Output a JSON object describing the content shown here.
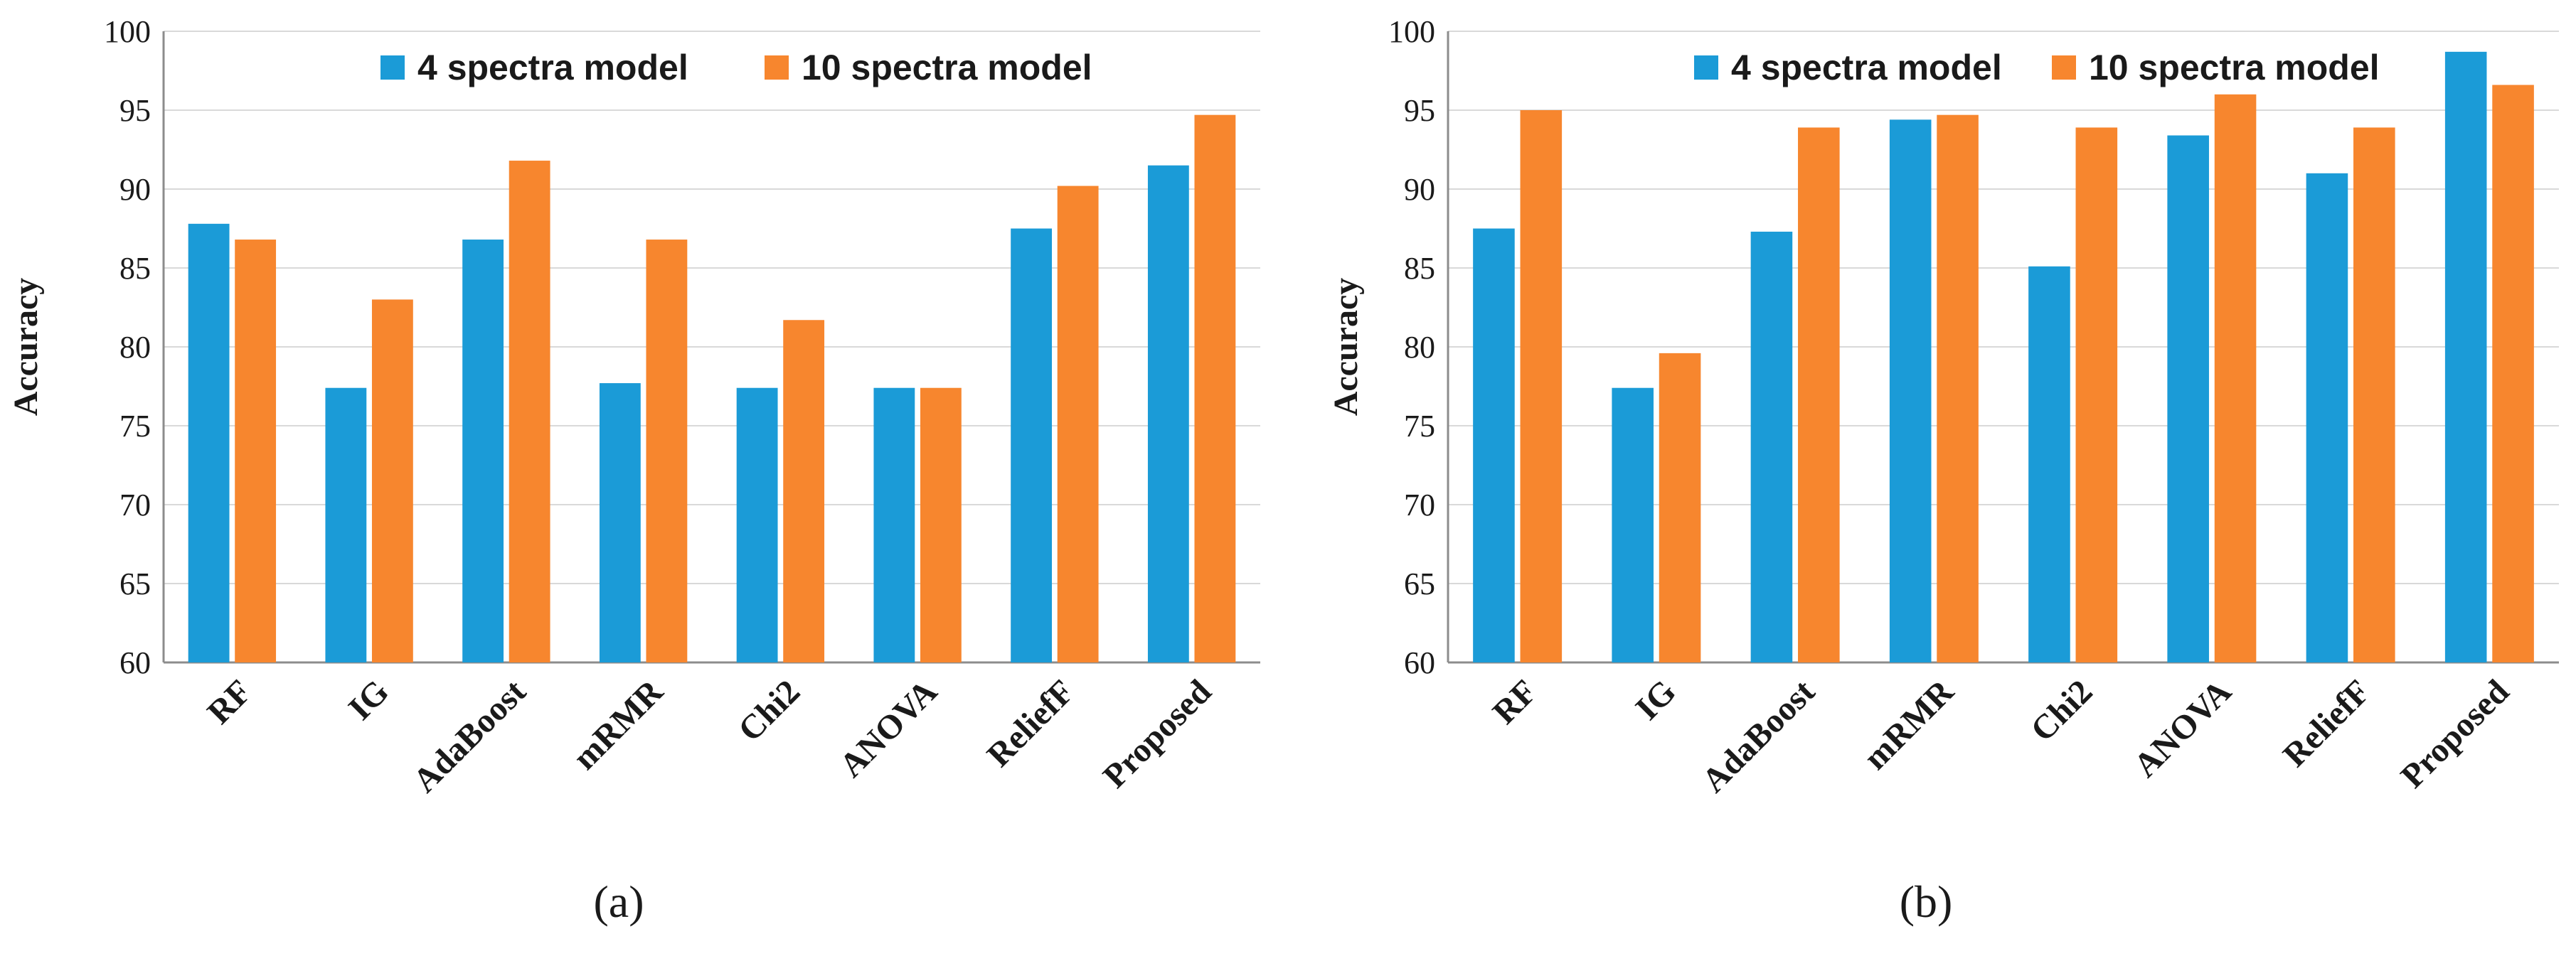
{
  "chart_data": [
    {
      "type": "bar",
      "panel_label": "(a)",
      "categories": [
        "RF",
        "IG",
        "AdaBoost",
        "mRMR",
        "Chi2",
        "ANOVA",
        "ReliefF",
        "Proposed"
      ],
      "series": [
        {
          "name": "4 spectra model",
          "color": "#1b9bd7",
          "values": [
            87.8,
            77.4,
            86.8,
            77.7,
            77.4,
            77.4,
            87.5,
            91.5
          ]
        },
        {
          "name": "10 spectra model",
          "color": "#f7862e",
          "values": [
            86.8,
            83.0,
            91.8,
            86.8,
            81.7,
            77.4,
            90.2,
            94.7
          ]
        }
      ],
      "ylabel": "Accuracy",
      "ylim": [
        60,
        100
      ],
      "yticks": [
        60,
        65,
        70,
        75,
        80,
        85,
        90,
        95,
        100
      ],
      "legend": "top"
    },
    {
      "type": "bar",
      "panel_label": "(b)",
      "categories": [
        "RF",
        "IG",
        "AdaBoost",
        "mRMR",
        "Chi2",
        "ANOVA",
        "ReliefF",
        "Proposed"
      ],
      "series": [
        {
          "name": "4 spectra model",
          "color": "#1b9bd7",
          "values": [
            87.5,
            77.4,
            87.3,
            94.4,
            85.1,
            93.4,
            91.0,
            98.7
          ]
        },
        {
          "name": "10 spectra model",
          "color": "#f7862e",
          "values": [
            95.0,
            79.6,
            93.9,
            94.7,
            93.9,
            96.0,
            93.9,
            96.6
          ]
        }
      ],
      "ylabel": "Accuracy",
      "ylim": [
        60,
        100
      ],
      "yticks": [
        60,
        65,
        70,
        75,
        80,
        85,
        90,
        95,
        100
      ],
      "legend": "top"
    }
  ]
}
